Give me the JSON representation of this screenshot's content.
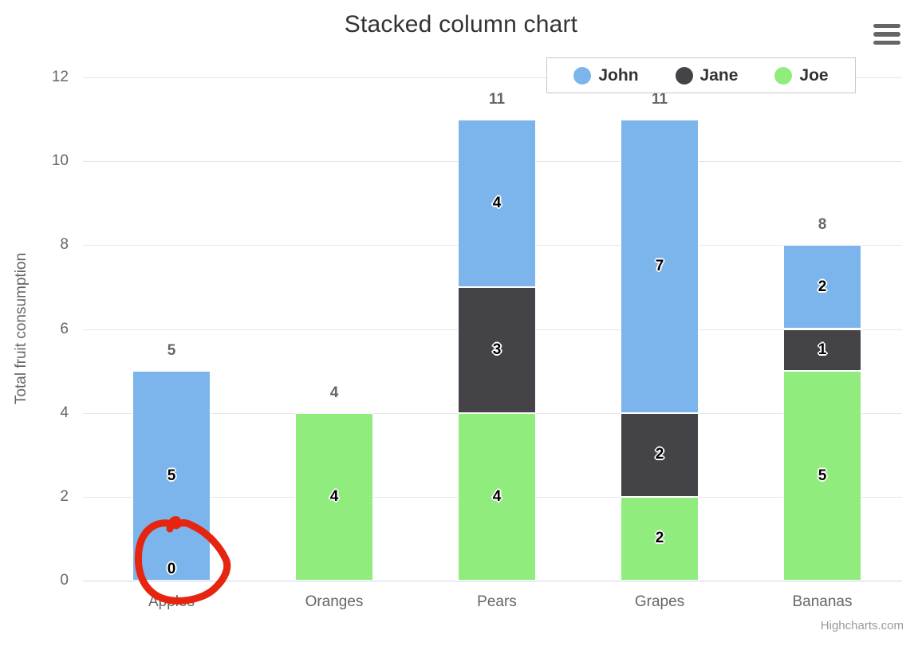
{
  "chart_data": {
    "type": "bar",
    "subtype": "stacked-column",
    "title": "Stacked column chart",
    "categories": [
      "Apples",
      "Oranges",
      "Pears",
      "Grapes",
      "Bananas"
    ],
    "series": [
      {
        "name": "John",
        "color": "#7cb5ec",
        "values": [
          5,
          0,
          4,
          7,
          2
        ]
      },
      {
        "name": "Jane",
        "color": "#434348",
        "values": [
          0,
          0,
          3,
          2,
          1
        ]
      },
      {
        "name": "Joe",
        "color": "#90ed7d",
        "values": [
          0,
          4,
          4,
          2,
          5
        ]
      }
    ],
    "stack_order_bottom_to_top": [
      "Joe",
      "Jane",
      "John"
    ],
    "stack_totals": [
      5,
      4,
      11,
      11,
      8
    ],
    "extra_zero_labels": [
      {
        "category_index": 0,
        "text": "0"
      }
    ],
    "xlabel": "",
    "ylabel": "Total fruit consumption",
    "yticks": [
      0,
      2,
      4,
      6,
      8,
      10,
      12
    ],
    "ylim": [
      0,
      12
    ],
    "grid": "horizontal",
    "legend_position": "top-right-inside"
  },
  "legend": {
    "items": [
      {
        "label": "John",
        "color": "#7cb5ec"
      },
      {
        "label": "Jane",
        "color": "#434348"
      },
      {
        "label": "Joe",
        "color": "#90ed7d"
      }
    ]
  },
  "annotation": {
    "type": "hand-drawn-circle",
    "color": "#e5250f",
    "target": "zero data label at base of Apples column"
  },
  "credits": {
    "text": "Highcharts.com"
  },
  "colors": {
    "title_text": "#333333",
    "axis_text": "#666666",
    "gridline": "#e6e6e6",
    "axis_line": "#ccd6eb",
    "credits_text": "#999999",
    "menu_icon": "#666666"
  }
}
